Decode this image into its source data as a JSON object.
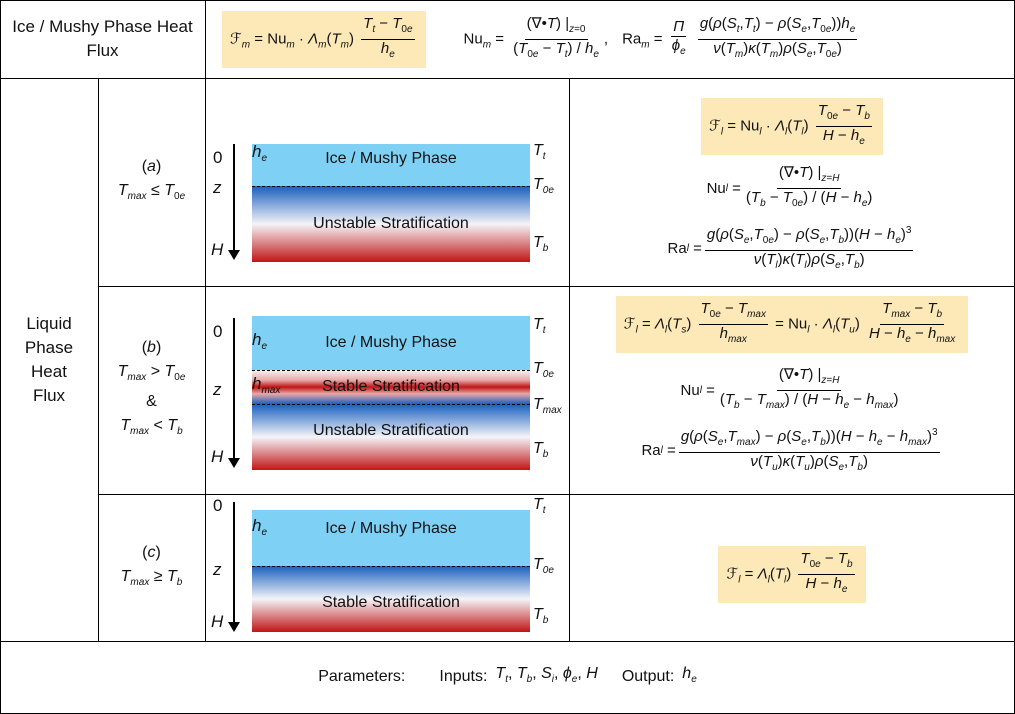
{
  "header": {
    "left_label": "Ice / Mushy Phase Heat Flux"
  },
  "liquid_label": "Liquid Phase Heat Flux",
  "cases": [
    {
      "tag": "a",
      "cond1": "T_max ≤ T_0e"
    },
    {
      "tag": "b",
      "cond1": "T_max > T_0e",
      "amp": "&",
      "cond2": "T_max < T_b"
    },
    {
      "tag": "c",
      "cond1": "T_max ≥ T_b"
    }
  ],
  "phases": {
    "ice": "Ice / Mushy Phase",
    "unstable": "Unstable Stratification",
    "stable": "Stable Stratification"
  },
  "axis": {
    "top": "0",
    "mid": "z",
    "bottom": "H"
  },
  "footer": {
    "params_label": "Parameters:",
    "inputs_label": "Inputs:",
    "output_label": "Output:"
  },
  "colors": {
    "ice": "#7fd0f5",
    "blue": "#1a63c2",
    "red": "#c01a1a",
    "highlight": "#fde9b8"
  }
}
